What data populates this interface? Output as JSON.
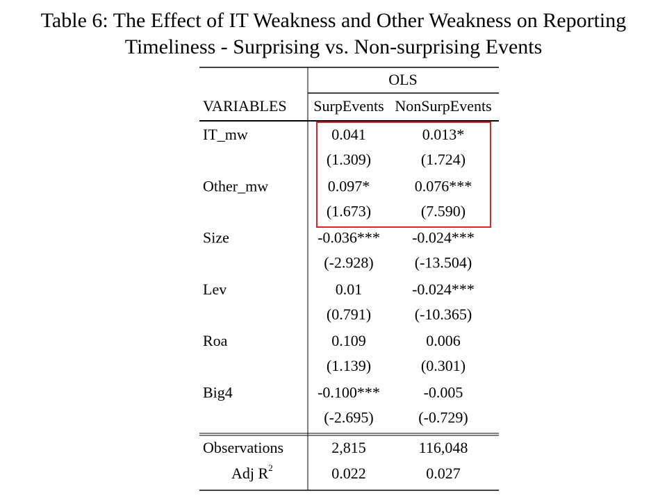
{
  "title": [
    "Table 6: The Effect of IT Weakness and Other Weakness on Reporting",
    "Timeliness - Surprising vs. Non-surprising Events"
  ],
  "table": {
    "group_header": "OLS",
    "columns": [
      "VARIABLES",
      "SurpEvents",
      "NonSurpEvents"
    ],
    "rows": [
      {
        "variable": "IT_mw",
        "coef": [
          "0.041",
          "0.013*"
        ],
        "t": [
          "(1.309)",
          "(1.724)"
        ]
      },
      {
        "variable": "Other_mw",
        "coef": [
          "0.097*",
          "0.076***"
        ],
        "t": [
          "(1.673)",
          "(7.590)"
        ]
      },
      {
        "variable": "Size",
        "coef": [
          "-0.036***",
          "-0.024***"
        ],
        "t": [
          "(-2.928)",
          "(-13.504)"
        ]
      },
      {
        "variable": "Lev",
        "coef": [
          "0.01",
          "-0.024***"
        ],
        "t": [
          "(0.791)",
          "(-10.365)"
        ]
      },
      {
        "variable": "Roa",
        "coef": [
          "0.109",
          "0.006"
        ],
        "t": [
          "(1.139)",
          "(0.301)"
        ]
      },
      {
        "variable": "Big4",
        "coef": [
          "-0.100***",
          "-0.005"
        ],
        "t": [
          "(-2.695)",
          "(-0.729)"
        ]
      }
    ],
    "observations": {
      "label": "Observations",
      "values": [
        "2,815",
        "116,048"
      ]
    },
    "adj_r2": {
      "label": "Adj R",
      "sup": "2",
      "values": [
        "0.022",
        "0.027"
      ]
    }
  }
}
